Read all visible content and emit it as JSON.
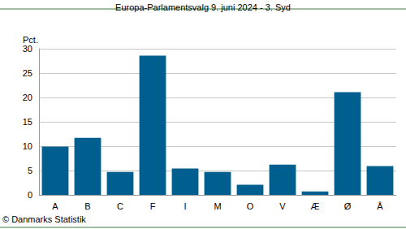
{
  "chart_data": {
    "type": "bar",
    "title": "Europa-Parlamentsvalg 9. juni 2024 - 3. Syd",
    "y_label": "Pct.",
    "annotations": [
      "© Danmarks Statistik"
    ],
    "categories": [
      "A",
      "B",
      "C",
      "F",
      "I",
      "M",
      "O",
      "V",
      "Æ",
      "Ø",
      "Å"
    ],
    "values": [
      9.9,
      11.7,
      4.7,
      28.6,
      5.4,
      4.7,
      2.1,
      6.2,
      0.7,
      21.1,
      5.9
    ],
    "color": "#005f8f",
    "ylim": [
      0,
      30
    ],
    "yticks": [
      0,
      5,
      10,
      15,
      20,
      25,
      30
    ],
    "grid": true
  }
}
